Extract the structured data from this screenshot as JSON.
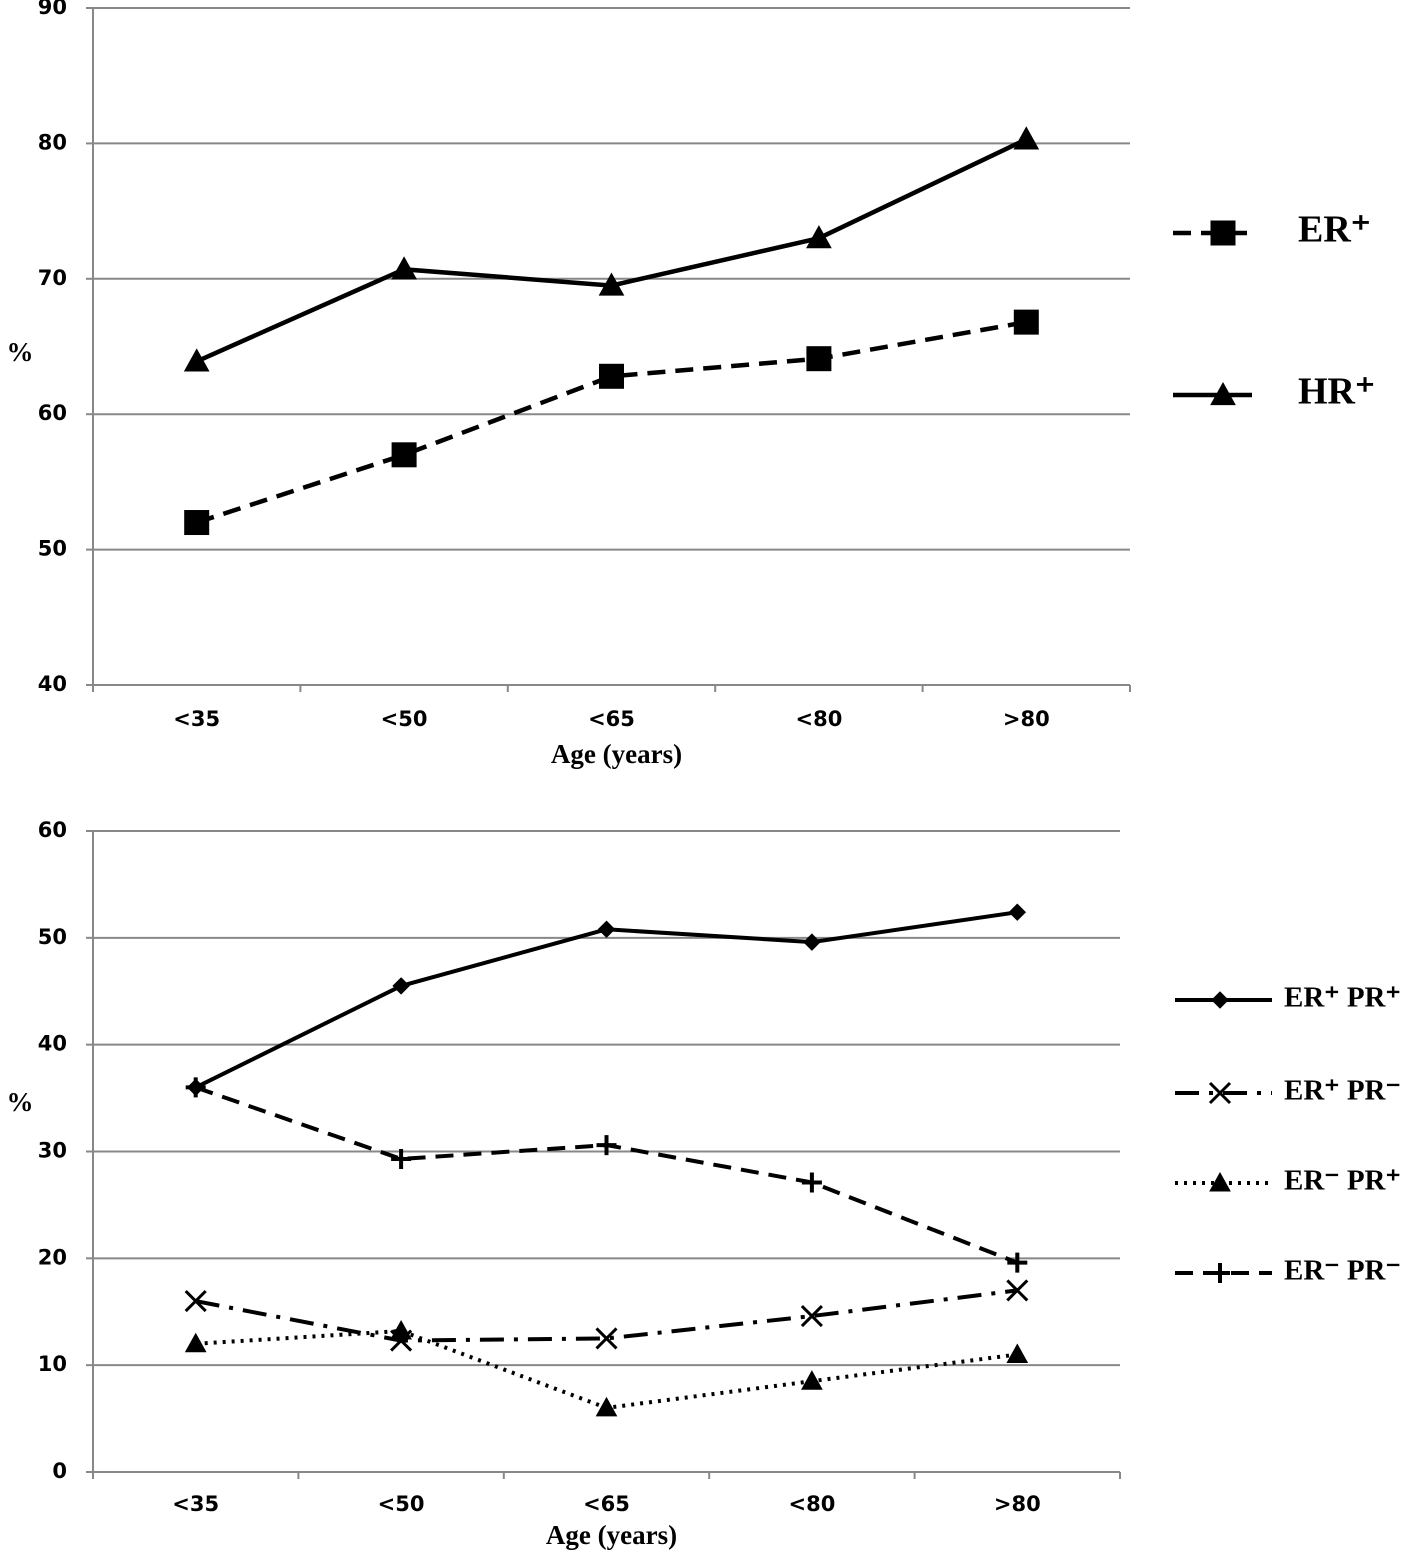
{
  "chart_data": [
    {
      "type": "line",
      "categories": [
        "<35",
        "<50",
        "<65",
        "<80",
        ">80"
      ],
      "x_label": "Age (years)",
      "y_label": "%",
      "ylim": [
        40,
        90
      ],
      "yticks": [
        40,
        50,
        60,
        70,
        80,
        90
      ],
      "grid": true,
      "legend": "right",
      "series": [
        {
          "name": "ER⁺",
          "color": "#000000",
          "marker": "square",
          "dash": "dashed",
          "values": [
            52,
            57,
            62.8,
            64.1,
            66.8
          ]
        },
        {
          "name": "HR⁺",
          "color": "#000000",
          "marker": "triangle",
          "dash": "solid",
          "values": [
            63.9,
            70.7,
            69.5,
            73,
            80.3
          ]
        }
      ]
    },
    {
      "type": "line",
      "categories": [
        "<35",
        "<50",
        "<65",
        "<80",
        ">80"
      ],
      "x_label": "Age (years)",
      "y_label": "%",
      "ylim": [
        0,
        60
      ],
      "yticks": [
        0,
        10,
        20,
        30,
        40,
        50,
        60
      ],
      "grid": true,
      "legend": "right",
      "series": [
        {
          "name": "ER⁺ PR⁺",
          "color": "#000000",
          "marker": "diamond",
          "dash": "solid",
          "values": [
            36,
            45.5,
            50.8,
            49.6,
            52.4
          ]
        },
        {
          "name": "ER⁺ PR⁻",
          "color": "#000000",
          "marker": "x",
          "dash": "dashdot",
          "values": [
            16,
            12.3,
            12.5,
            14.6,
            17
          ]
        },
        {
          "name": "ER⁻ PR⁺",
          "color": "#000000",
          "marker": "triangle",
          "dash": "dotted",
          "values": [
            12,
            13.2,
            6,
            8.5,
            11
          ]
        },
        {
          "name": "ER⁻ PR⁻",
          "color": "#000000",
          "marker": "plus",
          "dash": "dashed",
          "values": [
            36,
            29.3,
            30.6,
            27.1,
            19.6
          ]
        }
      ]
    }
  ]
}
